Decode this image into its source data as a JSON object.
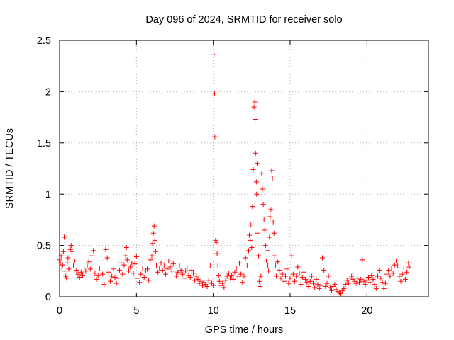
{
  "chart_data": {
    "type": "scatter",
    "title": "Day 096 of 2024, SRMTID for receiver solo",
    "xlabel": "GPS time / hours",
    "ylabel": "SRMTID / TECUs",
    "xlim": [
      0,
      24
    ],
    "ylim": [
      0,
      2.5
    ],
    "xticks": [
      0,
      5,
      10,
      15,
      20
    ],
    "xtick_labels": [
      "0",
      "5",
      "10",
      "15",
      "20"
    ],
    "yticks": [
      0,
      0.5,
      1,
      1.5,
      2,
      2.5
    ],
    "ytick_labels": [
      "0",
      "0.5",
      "1",
      "1.5",
      "2",
      "2.5"
    ],
    "grid": true,
    "marker": "+",
    "color": "#ff0000",
    "series": [
      {
        "name": "solo",
        "points": [
          [
            0.0,
            0.36
          ],
          [
            0.05,
            0.33
          ],
          [
            0.1,
            0.4
          ],
          [
            0.15,
            0.28
          ],
          [
            0.2,
            0.31
          ],
          [
            0.25,
            0.44
          ],
          [
            0.3,
            0.58
          ],
          [
            0.35,
            0.25
          ],
          [
            0.4,
            0.2
          ],
          [
            0.45,
            0.18
          ],
          [
            0.5,
            0.33
          ],
          [
            0.55,
            0.38
          ],
          [
            0.6,
            0.27
          ],
          [
            0.7,
            0.46
          ],
          [
            0.75,
            0.5
          ],
          [
            0.8,
            0.44
          ],
          [
            0.9,
            0.3
          ],
          [
            1.0,
            0.35
          ],
          [
            1.1,
            0.26
          ],
          [
            1.2,
            0.22
          ],
          [
            1.3,
            0.19
          ],
          [
            1.4,
            0.24
          ],
          [
            1.5,
            0.21
          ],
          [
            1.6,
            0.28
          ],
          [
            1.7,
            0.25
          ],
          [
            1.8,
            0.3
          ],
          [
            1.9,
            0.34
          ],
          [
            2.0,
            0.27
          ],
          [
            2.1,
            0.4
          ],
          [
            2.2,
            0.45
          ],
          [
            2.3,
            0.23
          ],
          [
            2.4,
            0.17
          ],
          [
            2.5,
            0.21
          ],
          [
            2.6,
            0.28
          ],
          [
            2.7,
            0.35
          ],
          [
            2.8,
            0.22
          ],
          [
            2.9,
            0.12
          ],
          [
            3.0,
            0.46
          ],
          [
            3.1,
            0.38
          ],
          [
            3.2,
            0.24
          ],
          [
            3.3,
            0.15
          ],
          [
            3.4,
            0.2
          ],
          [
            3.5,
            0.27
          ],
          [
            3.6,
            0.19
          ],
          [
            3.7,
            0.13
          ],
          [
            3.8,
            0.18
          ],
          [
            3.9,
            0.26
          ],
          [
            4.0,
            0.33
          ],
          [
            4.1,
            0.22
          ],
          [
            4.2,
            0.31
          ],
          [
            4.3,
            0.4
          ],
          [
            4.35,
            0.48
          ],
          [
            4.4,
            0.36
          ],
          [
            4.5,
            0.25
          ],
          [
            4.6,
            0.29
          ],
          [
            4.7,
            0.33
          ],
          [
            4.8,
            0.23
          ],
          [
            4.9,
            0.32
          ],
          [
            5.0,
            0.39
          ],
          [
            5.1,
            0.18
          ],
          [
            5.2,
            0.14
          ],
          [
            5.3,
            0.22
          ],
          [
            5.4,
            0.28
          ],
          [
            5.5,
            0.19
          ],
          [
            5.6,
            0.25
          ],
          [
            5.7,
            0.27
          ],
          [
            5.8,
            0.16
          ],
          [
            5.9,
            0.36
          ],
          [
            6.0,
            0.4
          ],
          [
            6.05,
            0.52
          ],
          [
            6.1,
            0.62
          ],
          [
            6.15,
            0.69
          ],
          [
            6.2,
            0.55
          ],
          [
            6.25,
            0.44
          ],
          [
            6.3,
            0.3
          ],
          [
            6.4,
            0.24
          ],
          [
            6.5,
            0.28
          ],
          [
            6.6,
            0.33
          ],
          [
            6.7,
            0.26
          ],
          [
            6.8,
            0.3
          ],
          [
            6.9,
            0.22
          ],
          [
            7.0,
            0.27
          ],
          [
            7.1,
            0.35
          ],
          [
            7.2,
            0.29
          ],
          [
            7.3,
            0.25
          ],
          [
            7.4,
            0.32
          ],
          [
            7.5,
            0.28
          ],
          [
            7.6,
            0.2
          ],
          [
            7.7,
            0.24
          ],
          [
            7.8,
            0.3
          ],
          [
            7.9,
            0.26
          ],
          [
            8.0,
            0.22
          ],
          [
            8.1,
            0.18
          ],
          [
            8.2,
            0.25
          ],
          [
            8.3,
            0.28
          ],
          [
            8.4,
            0.21
          ],
          [
            8.5,
            0.19
          ],
          [
            8.6,
            0.26
          ],
          [
            8.7,
            0.23
          ],
          [
            8.8,
            0.16
          ],
          [
            8.9,
            0.2
          ],
          [
            9.0,
            0.17
          ],
          [
            9.1,
            0.13
          ],
          [
            9.2,
            0.15
          ],
          [
            9.3,
            0.11
          ],
          [
            9.4,
            0.14
          ],
          [
            9.5,
            0.12
          ],
          [
            9.6,
            0.1
          ],
          [
            9.7,
            0.16
          ],
          [
            9.8,
            0.3
          ],
          [
            9.9,
            0.13
          ],
          [
            10.0,
            0.11
          ],
          [
            10.05,
            2.36
          ],
          [
            10.08,
            1.98
          ],
          [
            10.1,
            1.56
          ],
          [
            10.15,
            0.55
          ],
          [
            10.2,
            0.53
          ],
          [
            10.25,
            0.42
          ],
          [
            10.3,
            0.3
          ],
          [
            10.35,
            0.21
          ],
          [
            10.4,
            0.15
          ],
          [
            10.5,
            0.11
          ],
          [
            10.6,
            0.13
          ],
          [
            10.7,
            0.09
          ],
          [
            10.8,
            0.16
          ],
          [
            10.9,
            0.2
          ],
          [
            11.0,
            0.23
          ],
          [
            11.1,
            0.18
          ],
          [
            11.2,
            0.21
          ],
          [
            11.3,
            0.17
          ],
          [
            11.4,
            0.24
          ],
          [
            11.5,
            0.28
          ],
          [
            11.6,
            0.2
          ],
          [
            11.7,
            0.33
          ],
          [
            11.8,
            0.22
          ],
          [
            11.9,
            0.14
          ],
          [
            12.0,
            0.2
          ],
          [
            12.1,
            0.38
          ],
          [
            12.2,
            0.3
          ],
          [
            12.3,
            0.45
          ],
          [
            12.35,
            0.6
          ],
          [
            12.4,
            0.55
          ],
          [
            12.45,
            0.7
          ],
          [
            12.5,
            0.48
          ],
          [
            12.55,
            0.88
          ],
          [
            12.6,
            1.24
          ],
          [
            12.65,
            1.85
          ],
          [
            12.7,
            1.9
          ],
          [
            12.72,
            1.73
          ],
          [
            12.75,
            1.4
          ],
          [
            12.8,
            1.12
          ],
          [
            12.82,
            1.0
          ],
          [
            12.85,
            1.3
          ],
          [
            12.9,
            0.62
          ],
          [
            12.95,
            0.4
          ],
          [
            13.0,
            0.15
          ],
          [
            13.05,
            0.1
          ],
          [
            13.1,
            0.2
          ],
          [
            13.15,
            1.2
          ],
          [
            13.2,
            1.05
          ],
          [
            13.25,
            0.9
          ],
          [
            13.3,
            0.75
          ],
          [
            13.35,
            0.65
          ],
          [
            13.4,
            0.5
          ],
          [
            13.45,
            0.35
          ],
          [
            13.5,
            0.45
          ],
          [
            13.55,
            0.3
          ],
          [
            13.6,
            0.25
          ],
          [
            13.65,
            0.58
          ],
          [
            13.7,
            0.78
          ],
          [
            13.75,
            0.85
          ],
          [
            13.8,
            1.23
          ],
          [
            13.85,
            1.15
          ],
          [
            13.9,
            0.73
          ],
          [
            13.95,
            0.62
          ],
          [
            14.0,
            0.4
          ],
          [
            14.05,
            0.3
          ],
          [
            14.1,
            0.2
          ],
          [
            14.2,
            0.34
          ],
          [
            14.3,
            0.26
          ],
          [
            14.4,
            0.18
          ],
          [
            14.5,
            0.22
          ],
          [
            14.6,
            0.15
          ],
          [
            14.7,
            0.2
          ],
          [
            14.8,
            0.27
          ],
          [
            14.9,
            0.13
          ],
          [
            15.0,
            0.18
          ],
          [
            15.1,
            0.4
          ],
          [
            15.2,
            0.22
          ],
          [
            15.3,
            0.15
          ],
          [
            15.4,
            0.2
          ],
          [
            15.5,
            0.29
          ],
          [
            15.6,
            0.23
          ],
          [
            15.7,
            0.12
          ],
          [
            15.8,
            0.19
          ],
          [
            15.9,
            0.24
          ],
          [
            16.0,
            0.17
          ],
          [
            16.1,
            0.14
          ],
          [
            16.2,
            0.1
          ],
          [
            16.3,
            0.15
          ],
          [
            16.4,
            0.2
          ],
          [
            16.5,
            0.13
          ],
          [
            16.6,
            0.09
          ],
          [
            16.7,
            0.17
          ],
          [
            16.8,
            0.12
          ],
          [
            16.9,
            0.08
          ],
          [
            17.0,
            0.11
          ],
          [
            17.1,
            0.38
          ],
          [
            17.2,
            0.26
          ],
          [
            17.3,
            0.1
          ],
          [
            17.4,
            0.13
          ],
          [
            17.5,
            0.2
          ],
          [
            17.6,
            0.09
          ],
          [
            17.7,
            0.06
          ],
          [
            17.8,
            0.1
          ],
          [
            17.9,
            0.12
          ],
          [
            18.0,
            0.07
          ],
          [
            18.1,
            0.05
          ],
          [
            18.2,
            0.04
          ],
          [
            18.3,
            0.03
          ],
          [
            18.4,
            0.06
          ],
          [
            18.5,
            0.08
          ],
          [
            18.6,
            0.12
          ],
          [
            18.7,
            0.16
          ],
          [
            18.8,
            0.13
          ],
          [
            18.9,
            0.18
          ],
          [
            19.0,
            0.2
          ],
          [
            19.1,
            0.17
          ],
          [
            19.2,
            0.15
          ],
          [
            19.3,
            0.13
          ],
          [
            19.4,
            0.18
          ],
          [
            19.5,
            0.14
          ],
          [
            19.6,
            0.17
          ],
          [
            19.7,
            0.36
          ],
          [
            19.8,
            0.15
          ],
          [
            19.9,
            0.12
          ],
          [
            20.0,
            0.16
          ],
          [
            20.1,
            0.19
          ],
          [
            20.2,
            0.14
          ],
          [
            20.3,
            0.21
          ],
          [
            20.4,
            0.17
          ],
          [
            20.5,
            0.12
          ],
          [
            20.6,
            0.08
          ],
          [
            20.7,
            0.2
          ],
          [
            20.8,
            0.26
          ],
          [
            20.9,
            0.18
          ],
          [
            21.0,
            0.14
          ],
          [
            21.1,
            0.08
          ],
          [
            21.2,
            0.13
          ],
          [
            21.3,
            0.22
          ],
          [
            21.4,
            0.26
          ],
          [
            21.5,
            0.2
          ],
          [
            21.6,
            0.28
          ],
          [
            21.7,
            0.23
          ],
          [
            21.8,
            0.31
          ],
          [
            21.9,
            0.35
          ],
          [
            22.0,
            0.3
          ],
          [
            22.1,
            0.2
          ],
          [
            22.2,
            0.15
          ],
          [
            22.3,
            0.22
          ],
          [
            22.4,
            0.28
          ],
          [
            22.5,
            0.17
          ],
          [
            22.6,
            0.24
          ],
          [
            22.7,
            0.33
          ],
          [
            22.75,
            0.29
          ]
        ]
      }
    ]
  }
}
